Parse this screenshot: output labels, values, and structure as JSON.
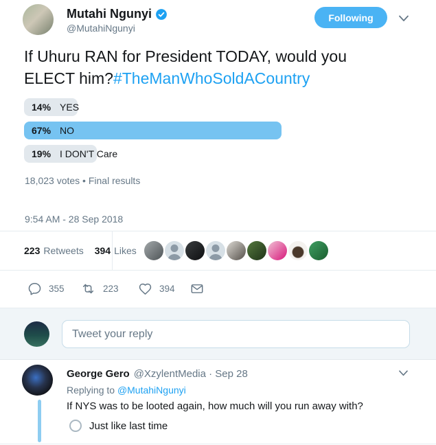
{
  "colors": {
    "accent": "#1da1f2",
    "follow_button": "#4AB3F4",
    "poll_winner_bar": "#76c3f1",
    "poll_bar": "#e2e8ed",
    "border": "#e6ecf0",
    "muted_text": "#657786",
    "thread_line": "#8ecdf1"
  },
  "tweet": {
    "author": {
      "name": "Mutahi Ngunyi",
      "handle": "@MutahiNgunyi",
      "verified_icon": "verified-badge"
    },
    "follow_label": "Following",
    "text_line1": "If Uhuru RAN for President TODAY, would you",
    "text_line2": "ELECT him?",
    "hashtag": "#TheManWhoSoldACountry",
    "poll": {
      "options": [
        {
          "pct": "14%",
          "value": 14,
          "label": "YES",
          "winner": false
        },
        {
          "pct": "67%",
          "value": 67,
          "label": "NO",
          "winner": true
        },
        {
          "pct": "19%",
          "value": 19,
          "label": "I DON'T Care",
          "winner": false
        }
      ],
      "meta": "18,023 votes • Final results"
    },
    "timestamp": "9:54 AM - 28 Sep 2018",
    "stats": {
      "retweets": "223",
      "retweets_label": "Retweets",
      "likes": "394",
      "likes_label": "Likes"
    },
    "actions": {
      "reply_count": "355",
      "retweet_count": "223",
      "like_count": "394"
    }
  },
  "compose": {
    "placeholder": "Tweet your reply"
  },
  "reply": {
    "author_name": "George Gero",
    "author_meta": "@XzylentMedia · Sep 28",
    "replying_label": "Replying to",
    "replying_to": "@MutahiNgunyi",
    "text": "If NYS was to be looted again, how much will you run away with?",
    "poll_option": "Just like last time"
  },
  "facepile": [
    {
      "type": "photo",
      "colors": [
        "#a3a8aa",
        "#4e5457"
      ]
    },
    {
      "type": "default"
    },
    {
      "type": "photo",
      "colors": [
        "#3a3d3f",
        "#0e0f11"
      ]
    },
    {
      "type": "default"
    },
    {
      "type": "photo",
      "colors": [
        "#dcd9d3",
        "#55504a"
      ]
    },
    {
      "type": "photo",
      "colors": [
        "#55793f",
        "#1f3318"
      ]
    },
    {
      "type": "photo",
      "colors": [
        "#f0c2d6",
        "#d8177a"
      ]
    },
    {
      "type": "photo",
      "shape": "radial",
      "colors": [
        "#4a382a",
        "#f4f2ef"
      ]
    },
    {
      "type": "photo",
      "colors": [
        "#3f9e63",
        "#1b5e2f"
      ]
    }
  ]
}
